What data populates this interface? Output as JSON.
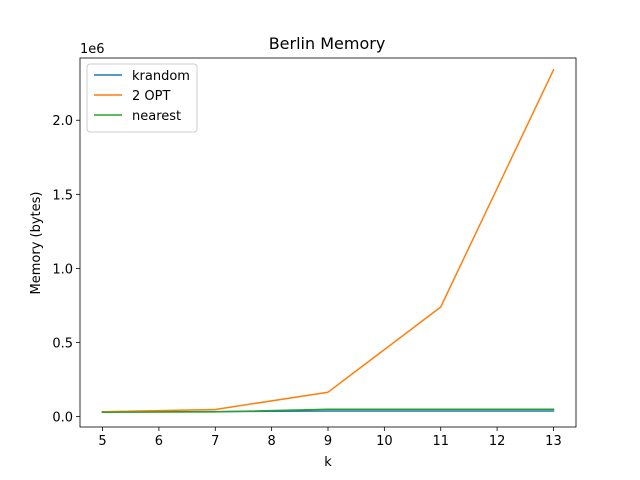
{
  "chart_data": {
    "type": "line",
    "title": "Berlin Memory",
    "xlabel": "k",
    "ylabel": "Memory (bytes)",
    "y_offset_label": "1e6",
    "x": [
      5,
      7,
      9,
      11,
      13
    ],
    "xlim": [
      4.6,
      13.4
    ],
    "ylim": [
      -70000,
      2420000
    ],
    "xticks": [
      5,
      6,
      7,
      8,
      9,
      10,
      11,
      12,
      13
    ],
    "yticks": [
      0.0,
      0.5,
      1.0,
      1.5,
      2.0
    ],
    "ytick_multiplier": 1000000,
    "legend_position": "upper left",
    "grid": false,
    "series": [
      {
        "name": "krandom",
        "color": "#1f77b4",
        "values": [
          32000,
          34000,
          38000,
          38000,
          38000
        ]
      },
      {
        "name": "2 OPT",
        "color": "#ff7f0e",
        "values": [
          33000,
          48000,
          165000,
          740000,
          2340000
        ]
      },
      {
        "name": "nearest",
        "color": "#2ca02c",
        "values": [
          30000,
          32000,
          50000,
          50000,
          50000
        ]
      }
    ]
  }
}
